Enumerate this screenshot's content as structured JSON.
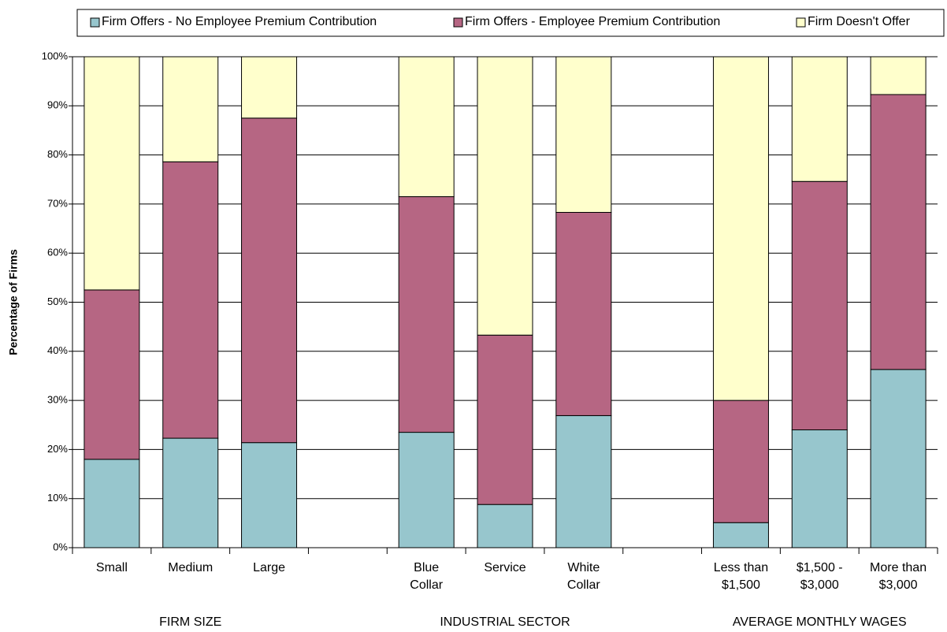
{
  "chart_data": {
    "type": "stacked_bar",
    "ylabel": "Percentage of Firms",
    "categories": [
      "Small",
      "Medium",
      "Large",
      null,
      "Blue\nCollar",
      "Service",
      "White\nCollar",
      null,
      "Less than\n$1,500",
      "$1,500 -\n$3,000",
      "More than\n$3,000"
    ],
    "groups": [
      "FIRM  SIZE",
      "INDUSTRIAL SECTOR",
      "AVERAGE MONTHLY WAGES"
    ],
    "series": [
      {
        "name": "Firm Offers - No Employee Premium Contribution",
        "color": "#97c6cd",
        "values": [
          18,
          22.3,
          21.4,
          null,
          23.5,
          8.8,
          26.9,
          null,
          5.1,
          24,
          36.3
        ]
      },
      {
        "name": "Firm Offers - Employee Premium Contribution",
        "color": "#b66683",
        "values": [
          34.5,
          56.3,
          66.1,
          null,
          48,
          34.5,
          41.4,
          null,
          24.9,
          50.6,
          56
        ]
      },
      {
        "name": "Firm Doesn't Offer",
        "color": "#ffffcc",
        "values": [
          47.5,
          21.4,
          12.5,
          null,
          28.5,
          56.7,
          31.7,
          null,
          70,
          25.4,
          7.7
        ]
      }
    ],
    "ylim": [
      0,
      100
    ],
    "yticks": [
      {
        "value": 0,
        "label": "0%"
      },
      {
        "value": 10,
        "label": "10%"
      },
      {
        "value": 20,
        "label": "20%"
      },
      {
        "value": 30,
        "label": "30%"
      },
      {
        "value": 40,
        "label": "40%"
      },
      {
        "value": 50,
        "label": "50%"
      },
      {
        "value": 60,
        "label": "60%"
      },
      {
        "value": 70,
        "label": "70%"
      },
      {
        "value": 80,
        "label": "80%"
      },
      {
        "value": 90,
        "label": "90%"
      },
      {
        "value": 100,
        "label": "100%"
      }
    ],
    "grid": true,
    "legend": "top"
  }
}
